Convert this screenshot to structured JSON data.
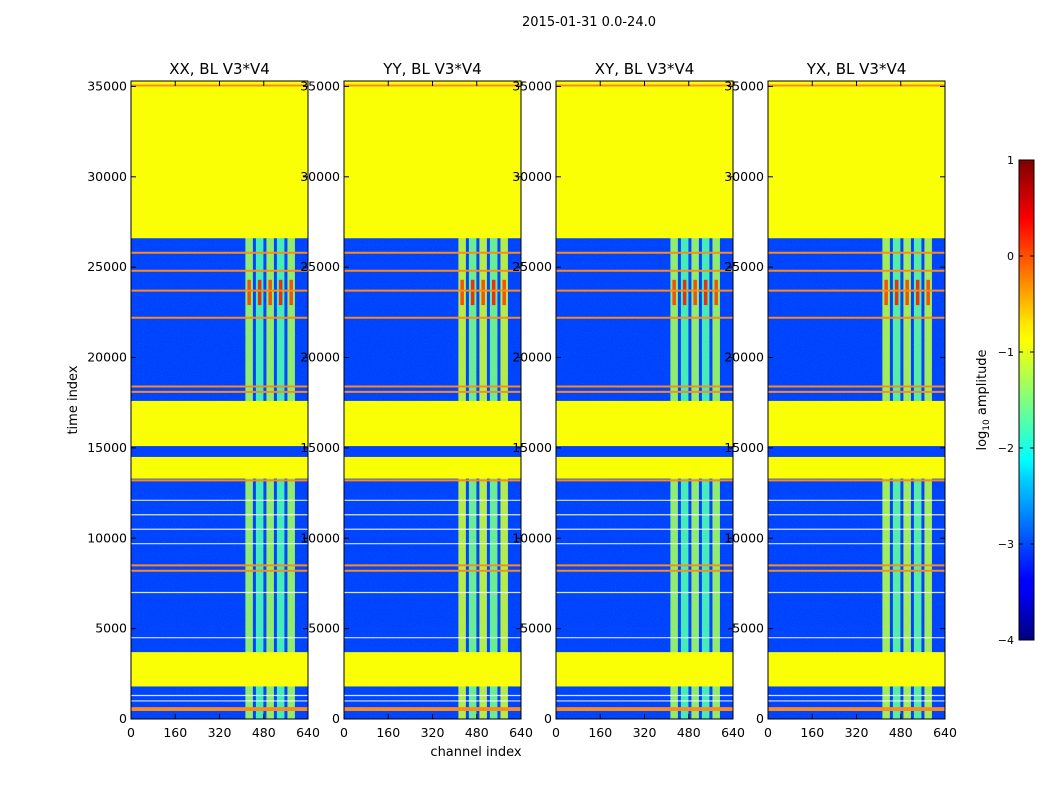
{
  "chart_data": {
    "type": "heatmap",
    "suptitle": "2015-01-31 0.0-24.0",
    "xlabel": "channel index",
    "ylabel": "time index",
    "xlim": [
      0,
      640
    ],
    "ylim": [
      0,
      35300
    ],
    "xticks": [
      0,
      160,
      320,
      480,
      640
    ],
    "yticks": [
      0,
      5000,
      10000,
      15000,
      20000,
      25000,
      30000,
      35000
    ],
    "colorbar": {
      "label": "log10 amplitude",
      "label_base": "log",
      "label_sub": "10",
      "label_rest": " amplitude",
      "range": [
        -4,
        1
      ],
      "ticks": [
        "1",
        "0",
        "−1",
        "−2",
        "−3",
        "−4"
      ]
    },
    "flagged_value": -0.9,
    "flagged_time_ranges": [
      [
        26600,
        35300
      ],
      [
        13300,
        17600
      ],
      [
        1800,
        3700
      ]
    ],
    "signal_channel_range": [
      410,
      600
    ],
    "panels": [
      {
        "title": "XX, BL V3*V4",
        "signal_level": -1.6
      },
      {
        "title": "YY, BL V3*V4",
        "signal_level": -1.4
      },
      {
        "title": "XY, BL V3*V4",
        "signal_level": -1.6
      },
      {
        "title": "YX, BL V3*V4",
        "signal_level": -1.5
      }
    ]
  }
}
